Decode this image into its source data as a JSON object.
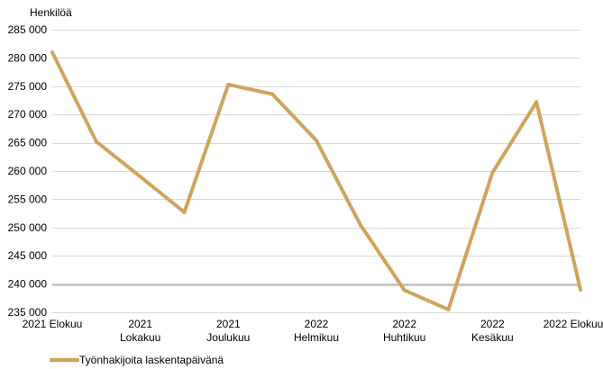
{
  "chart_data": {
    "type": "line",
    "title": "",
    "ylabel": "Henkilöä",
    "xlabel": "",
    "ylim": [
      235000,
      285000
    ],
    "yticks": [
      235000,
      240000,
      245000,
      250000,
      255000,
      260000,
      265000,
      270000,
      275000,
      280000,
      285000
    ],
    "ytick_labels": [
      "235 000",
      "240 000",
      "245 000",
      "250 000",
      "255 000",
      "260 000",
      "265 000",
      "270 000",
      "275 000",
      "280 000",
      "285 000"
    ],
    "x_categories": [
      "2021-08",
      "2021-09",
      "2021-10",
      "2021-11",
      "2021-12",
      "2022-01",
      "2022-02",
      "2022-03",
      "2022-04",
      "2022-05",
      "2022-06",
      "2022-07",
      "2022-08"
    ],
    "x_tick_labels": [
      {
        "category": "2021-08",
        "lines": [
          "2021 Elokuu"
        ]
      },
      {
        "category": "2021-10",
        "lines": [
          "2021",
          "Lokakuu"
        ]
      },
      {
        "category": "2021-12",
        "lines": [
          "2021",
          "Joulukuu"
        ]
      },
      {
        "category": "2022-02",
        "lines": [
          "2022",
          "Helmikuu"
        ]
      },
      {
        "category": "2022-04",
        "lines": [
          "2022",
          "Huhtikuu"
        ]
      },
      {
        "category": "2022-06",
        "lines": [
          "2022",
          "Kesäkuu"
        ]
      },
      {
        "category": "2022-08",
        "lines": [
          "2022 Elokuu"
        ]
      }
    ],
    "grid": true,
    "legend": "bottom-left",
    "series": [
      {
        "name": "Työnhakijoita laskentapäivänä",
        "color": "#cfa45e",
        "values": [
          281000,
          265200,
          259000,
          252700,
          275300,
          273600,
          265400,
          250500,
          238900,
          235500,
          259700,
          272200,
          239000
        ]
      }
    ]
  }
}
